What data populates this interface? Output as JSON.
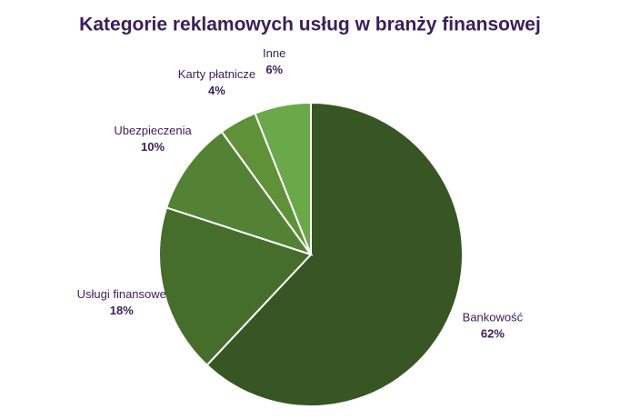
{
  "chart_data": {
    "type": "pie",
    "title": "Kategorie reklamowych usług w branży finansowej",
    "categories": [
      "Bankowość",
      "Usługi finansowe",
      "Ubezpieczenia",
      "Karty płatnicze",
      "Inne"
    ],
    "values": [
      62,
      18,
      10,
      4,
      6
    ],
    "value_labels": [
      "62%",
      "18%",
      "10%",
      "4%",
      "6%"
    ],
    "colors": [
      "#375623",
      "#476d2d",
      "#548235",
      "#5f9139",
      "#6aa84a"
    ]
  }
}
